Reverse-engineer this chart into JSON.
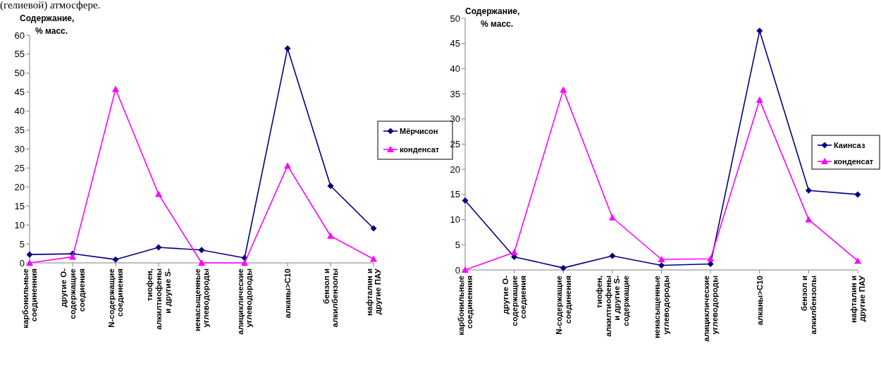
{
  "chart_data": [
    {
      "type": "line",
      "annotations": [
        "(гелиевой) атмосфере."
      ],
      "ylabel": "Содержание,\n% масс.",
      "categories": [
        "карбонильные\nсоединенния",
        "другие О-\nсодержащие\nсоедиения",
        "N-содержащие\nсоединения",
        "тиофен,\nалкилтиофены\nи другие S-",
        "ненасыщенные\nуглеводороды",
        "алициклические\nуглеводороды",
        "алканы>С10",
        "бензол и\nалкилбензолы",
        "нафталин и\nдругие ПАУ"
      ],
      "series": [
        {
          "name": "Мёрчисон",
          "color": "#000080",
          "marker": "diamond",
          "values": [
            2.2,
            2.4,
            0.9,
            4.1,
            3.4,
            1.3,
            56.5,
            20.3,
            9.1
          ]
        },
        {
          "name": "конденсат",
          "color": "#ff00ff",
          "marker": "triangle",
          "values": [
            0,
            1.6,
            45.8,
            18.1,
            0,
            0,
            25.6,
            7.1,
            1.0
          ]
        }
      ],
      "ylim": [
        0,
        60
      ],
      "yticks": [
        0,
        5,
        10,
        15,
        20,
        25,
        30,
        35,
        40,
        45,
        50,
        55,
        60
      ],
      "grid": false,
      "legend": "right",
      "line_style": "solid"
    },
    {
      "type": "line",
      "ylabel": "Содержание,\n% масс.",
      "categories": [
        "карбонильные\nсоединенния",
        "другие О-\nсодержащие\nсоедиения",
        "N-содержащие\nсоединения",
        "тиофен,\nалкилтиофены\nи другие S-\nсодержащие",
        "ненасыщенные\nуглеводороды",
        "алициклические\nуглеводороды",
        "алканы>С10",
        "бензол и\nалкилбензолы",
        "нафталин и\nдругие ПАУ"
      ],
      "series": [
        {
          "name": "Каинсаз",
          "color": "#000080",
          "marker": "diamond",
          "values": [
            13.8,
            2.6,
            0.4,
            2.8,
            0.9,
            1.2,
            47.5,
            15.8,
            15.0
          ]
        },
        {
          "name": "конденсат",
          "color": "#ff00ff",
          "marker": "triangle",
          "values": [
            0,
            3.5,
            35.8,
            10.4,
            2.1,
            2.2,
            33.8,
            10.0,
            1.8
          ]
        }
      ],
      "ylim": [
        0,
        50
      ],
      "yticks": [
        0,
        5,
        10,
        15,
        20,
        25,
        30,
        35,
        40,
        45,
        50
      ],
      "grid": false,
      "legend": "right",
      "line_style": "solid"
    }
  ]
}
